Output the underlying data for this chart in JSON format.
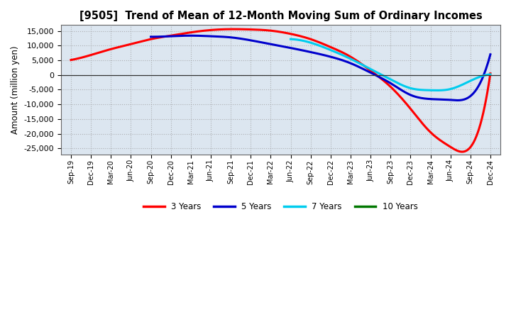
{
  "title": "[9505]  Trend of Mean of 12-Month Moving Sum of Ordinary Incomes",
  "ylabel": "Amount (million yen)",
  "background_color": "#ffffff",
  "plot_background": "#dce6f0",
  "grid_color": "#999999",
  "ylim": [
    -27000,
    17000
  ],
  "yticks": [
    -25000,
    -20000,
    -15000,
    -10000,
    -5000,
    0,
    5000,
    10000,
    15000
  ],
  "x_labels": [
    "Sep-19",
    "Dec-19",
    "Mar-20",
    "Jun-20",
    "Sep-20",
    "Dec-20",
    "Mar-21",
    "Jun-21",
    "Sep-21",
    "Dec-21",
    "Mar-22",
    "Jun-22",
    "Sep-22",
    "Dec-22",
    "Mar-23",
    "Jun-23",
    "Sep-23",
    "Dec-23",
    "Mar-24",
    "Jun-24",
    "Sep-24",
    "Dec-24"
  ],
  "series": {
    "3 Years": {
      "color": "#ff0000",
      "data": [
        5100,
        6800,
        8800,
        10500,
        12200,
        13400,
        14500,
        15300,
        15600,
        15500,
        15100,
        14000,
        12200,
        9500,
        6200,
        1500,
        -4000,
        -11500,
        -19500,
        -24500,
        -24600,
        500
      ]
    },
    "5 Years": {
      "color": "#0000cc",
      "data": [
        null,
        null,
        null,
        null,
        13000,
        13200,
        13400,
        13200,
        12800,
        11800,
        10500,
        9200,
        7800,
        6200,
        4000,
        800,
        -2800,
        -6800,
        -8200,
        -8500,
        -7200,
        7000
      ]
    },
    "7 Years": {
      "color": "#00ccee",
      "data": [
        null,
        null,
        null,
        null,
        null,
        null,
        null,
        null,
        null,
        null,
        null,
        12200,
        11000,
        8500,
        5500,
        2000,
        -1500,
        -4500,
        -5200,
        -4800,
        -2000,
        200
      ]
    },
    "10 Years": {
      "color": "#007700",
      "data": [
        null,
        null,
        null,
        null,
        null,
        null,
        null,
        null,
        null,
        null,
        null,
        null,
        null,
        null,
        null,
        null,
        null,
        null,
        null,
        null,
        null,
        null
      ]
    }
  },
  "legend_labels": [
    "3 Years",
    "5 Years",
    "7 Years",
    "10 Years"
  ],
  "legend_colors": [
    "#ff0000",
    "#0000cc",
    "#00ccee",
    "#007700"
  ]
}
